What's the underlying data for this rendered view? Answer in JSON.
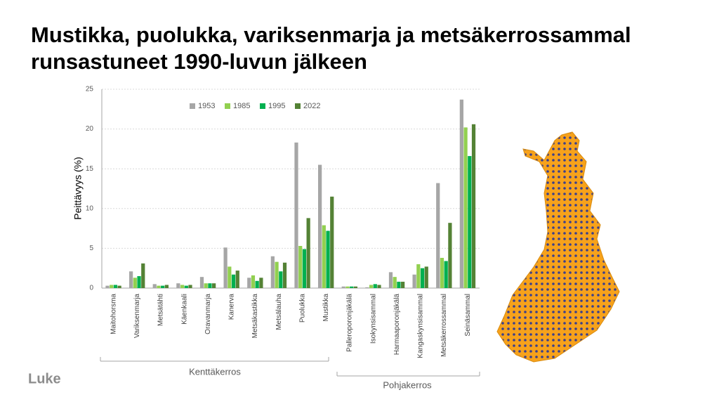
{
  "chart_data": {
    "type": "bar",
    "title_lines": [
      "Mustikka, puolukka, variksenmarja ja metsäkerrossammal",
      "runsastuneet 1990-luvun jälkeen"
    ],
    "y_label": "Peittävyys (%)",
    "categories": [
      "Maitohorsma",
      "Variksenmarja",
      "Metsätähti",
      "Käenkaali",
      "Oravanmarja",
      "Kanerva",
      "Metsäkastikka",
      "Metsälauha",
      "Puolukka",
      "Mustikka",
      "Palleroporonjäkälä",
      "Isokynsisammal",
      "Harmaaporonjäkälä",
      "Kangaskynsisammal",
      "Metsäkerrossammal",
      "Seinäsammal"
    ],
    "series": [
      {
        "name": "1953",
        "color": "#a6a6a6",
        "values": [
          0.3,
          2.1,
          0.5,
          0.6,
          1.4,
          5.1,
          1.3,
          4.0,
          18.3,
          15.5,
          0.2,
          0.1,
          2.0,
          1.7,
          13.2,
          23.7
        ]
      },
      {
        "name": "1985",
        "color": "#92d050",
        "values": [
          0.4,
          1.3,
          0.3,
          0.4,
          0.6,
          2.7,
          1.6,
          3.3,
          5.3,
          7.9,
          0.2,
          0.4,
          1.4,
          3.0,
          3.8,
          20.2
        ]
      },
      {
        "name": "1995",
        "color": "#00b050",
        "values": [
          0.4,
          1.5,
          0.3,
          0.3,
          0.6,
          1.7,
          0.9,
          2.1,
          4.9,
          7.2,
          0.2,
          0.5,
          0.8,
          2.5,
          3.4,
          16.6
        ]
      },
      {
        "name": "2022",
        "color": "#548235",
        "values": [
          0.3,
          3.1,
          0.4,
          0.4,
          0.6,
          2.2,
          1.3,
          3.2,
          8.8,
          11.5,
          0.2,
          0.4,
          0.8,
          2.7,
          8.2,
          20.6
        ]
      }
    ],
    "group_labels": [
      "Kenttäkerros",
      "Pohjakerros"
    ],
    "ylim": [
      0,
      25
    ],
    "yticks": [
      0,
      5,
      10,
      15,
      20,
      25
    ],
    "grid": true,
    "logo": "Luke"
  }
}
